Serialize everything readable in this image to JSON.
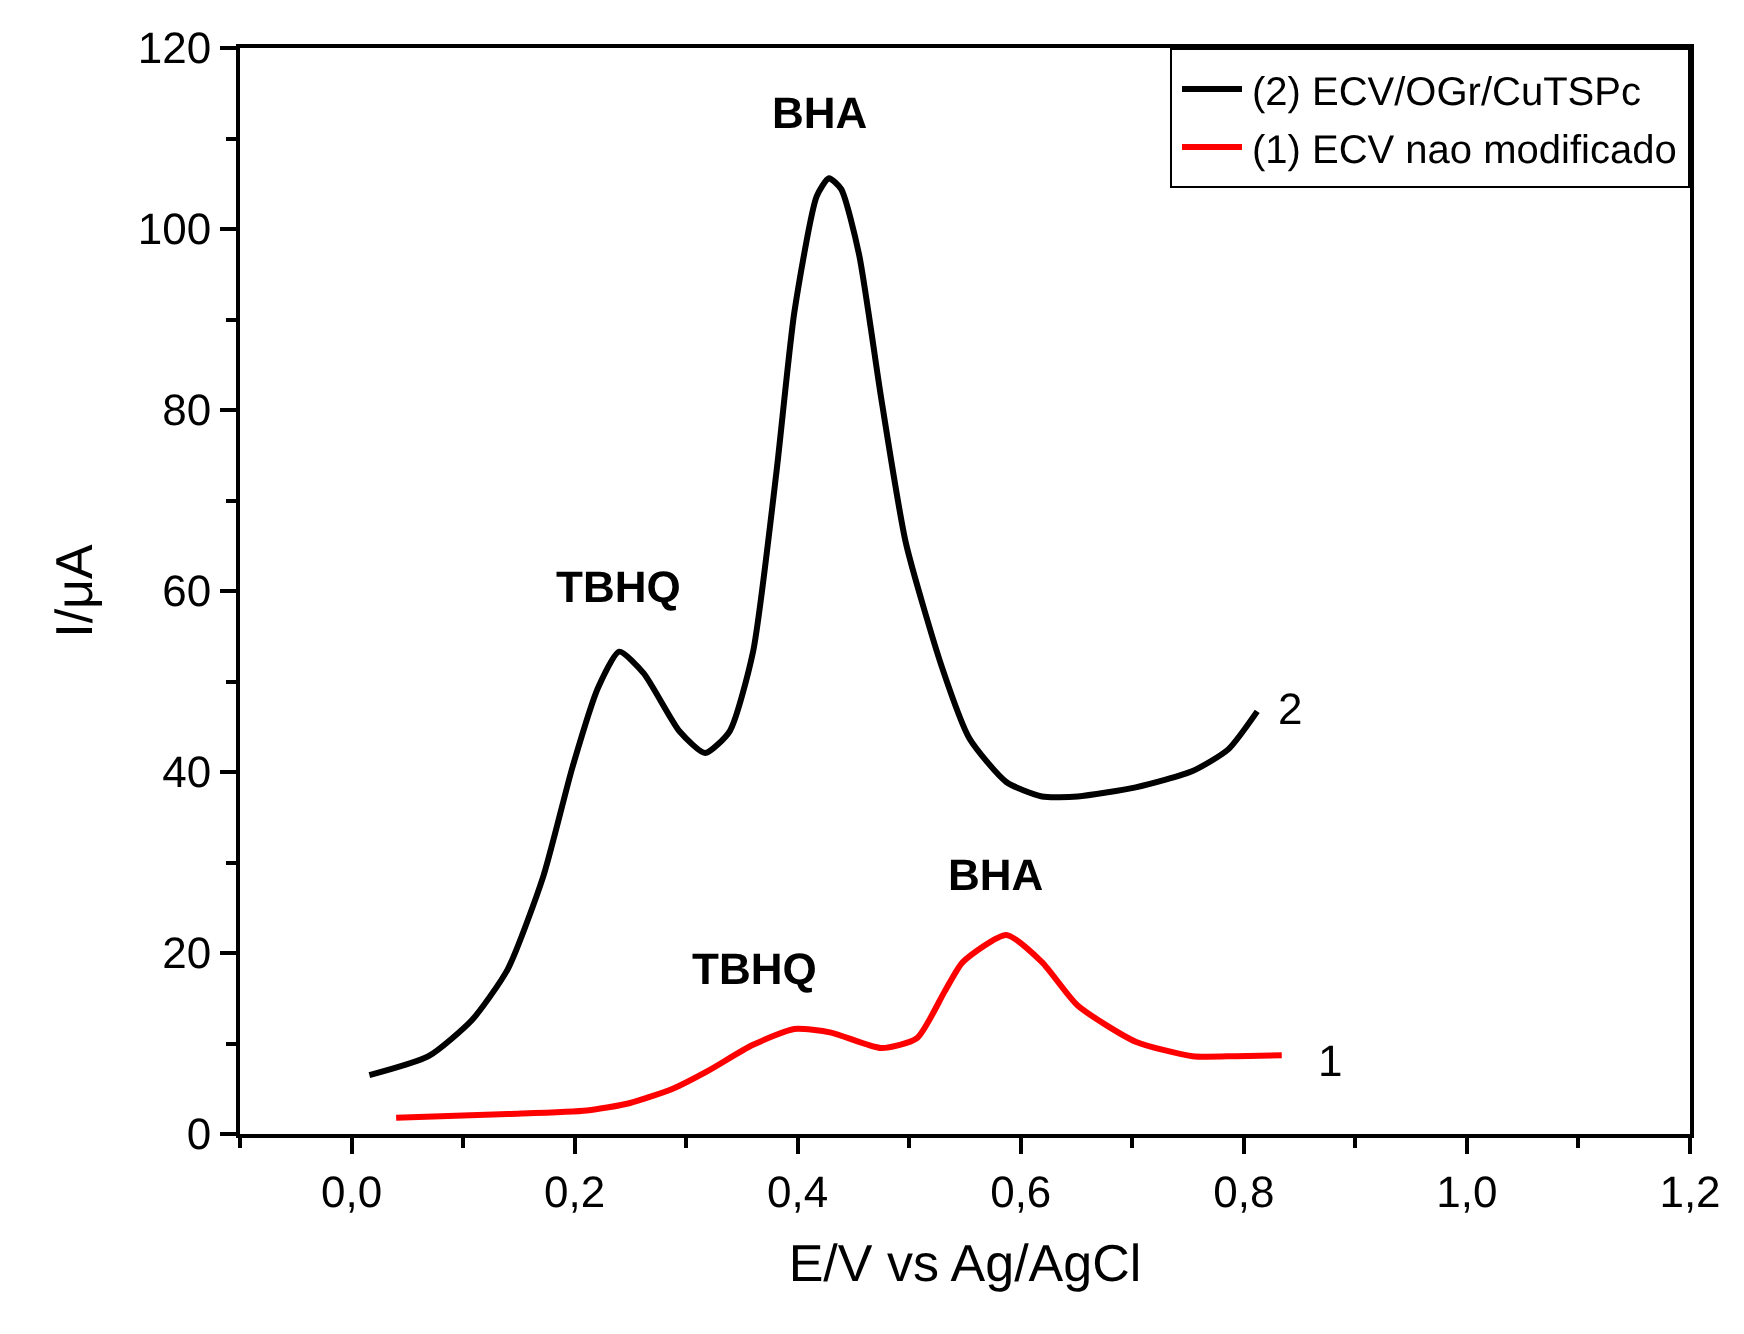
{
  "chart_data": {
    "type": "line",
    "xlabel": "E/V vs Ag/AgCl",
    "ylabel": "I/μA",
    "xlim": [
      -0.1,
      1.2
    ],
    "xticks": [
      {
        "value": 0.0,
        "label": "0,0"
      },
      {
        "value": 0.2,
        "label": "0,2"
      },
      {
        "value": 0.4,
        "label": "0,4"
      },
      {
        "value": 0.6,
        "label": "0,6"
      },
      {
        "value": 0.8,
        "label": "0,8"
      },
      {
        "value": 1.0,
        "label": "1,0"
      },
      {
        "value": 1.2,
        "label": "1,2"
      }
    ],
    "ylim": [
      0,
      120
    ],
    "yticks": [
      0,
      20,
      40,
      60,
      80,
      100,
      120
    ],
    "legend": "top right",
    "marker": "none",
    "line_style": "solid",
    "series": [
      {
        "name": "(2) ECV/OGr/CuTSPc",
        "color": "#000000",
        "x": [
          0.016,
          0.069,
          0.108,
          0.14,
          0.172,
          0.198,
          0.221,
          0.24,
          0.262,
          0.294,
          0.317,
          0.339,
          0.36,
          0.381,
          0.397,
          0.417,
          0.428,
          0.439,
          0.455,
          0.475,
          0.497,
          0.529,
          0.554,
          0.587,
          0.619,
          0.651,
          0.703,
          0.754,
          0.786,
          0.812
        ],
        "values": [
          6.5,
          8.6,
          12.6,
          18.2,
          28.5,
          40.5,
          49.3,
          53.3,
          50.9,
          44.5,
          42.1,
          44.5,
          53.3,
          73.2,
          90.8,
          103.6,
          105.6,
          104.4,
          97.2,
          81.2,
          65.3,
          51.7,
          43.7,
          38.9,
          37.3,
          37.3,
          38.3,
          40.1,
          42.5,
          46.7
        ]
      },
      {
        "name": "(1) ECV nao modificado",
        "color": "#ff0000",
        "x": [
          0.04,
          0.14,
          0.211,
          0.249,
          0.288,
          0.32,
          0.359,
          0.397,
          0.43,
          0.475,
          0.507,
          0.532,
          0.548,
          0.587,
          0.619,
          0.651,
          0.703,
          0.754,
          0.793,
          0.834
        ],
        "values": [
          1.8,
          2.2,
          2.6,
          3.4,
          5.0,
          7.0,
          9.8,
          11.6,
          11.2,
          9.5,
          10.6,
          15.8,
          19.0,
          22.0,
          19.0,
          14.2,
          10.2,
          8.6,
          8.6,
          8.7
        ]
      }
    ],
    "annotations": [
      "BHA",
      "TBHQ",
      "TBHQ",
      "BHA",
      "2",
      "1"
    ]
  }
}
